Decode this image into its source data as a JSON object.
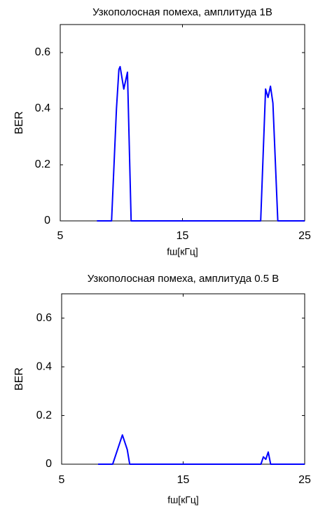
{
  "chart_data": [
    {
      "type": "line",
      "title": "Узкополосная помеха, амплитуда 1В",
      "x_label": "fш[кГц]",
      "y_label": "BER",
      "xlim": [
        5,
        25
      ],
      "xticks": [
        5,
        15,
        25
      ],
      "ylim": [
        0,
        0.7
      ],
      "yticks": [
        0,
        0.2,
        0.4,
        0.6
      ],
      "series": [
        {
          "color": "#0000ff",
          "x": [
            8,
            9.2,
            9.6,
            9.8,
            9.9,
            10.2,
            10.5,
            10.8,
            21.4,
            21.8,
            22.0,
            22.2,
            22.4,
            22.8,
            25
          ],
          "values": [
            0,
            0,
            0.4,
            0.54,
            0.55,
            0.47,
            0.53,
            0,
            0,
            0.47,
            0.44,
            0.48,
            0.42,
            0,
            0
          ]
        }
      ]
    },
    {
      "type": "line",
      "title": "Узкополосная помеха, амплитуда 0.5 В",
      "x_label": "fш[кГц]",
      "y_label": "BER",
      "xlim": [
        5,
        25
      ],
      "xticks": [
        5,
        15,
        25
      ],
      "ylim": [
        0,
        0.7
      ],
      "yticks": [
        0,
        0.2,
        0.4,
        0.6
      ],
      "series": [
        {
          "color": "#0000ff",
          "x": [
            8,
            9.2,
            9.6,
            10.0,
            10.4,
            10.6,
            21.4,
            21.6,
            21.8,
            22.0,
            22.2,
            25
          ],
          "values": [
            0,
            0,
            0.06,
            0.12,
            0.06,
            0,
            0,
            0.03,
            0.02,
            0.05,
            0,
            0
          ]
        }
      ]
    }
  ]
}
